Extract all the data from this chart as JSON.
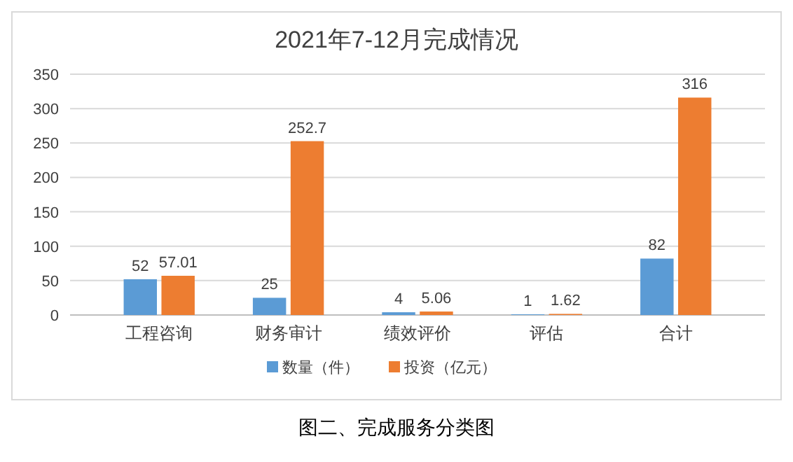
{
  "chart_data": {
    "type": "bar",
    "title": "2021年7-12月完成情况",
    "categories": [
      "工程咨询",
      "财务审计",
      "绩效评价",
      "评估",
      "合计"
    ],
    "series": [
      {
        "name": "数量（件）",
        "color": "#5b9bd5",
        "values": [
          52,
          25,
          4,
          1,
          82
        ]
      },
      {
        "name": "投资（亿元）",
        "color": "#ed7d31",
        "values": [
          57.01,
          252.7,
          5.06,
          1.62,
          316
        ]
      }
    ],
    "ylim": [
      0,
      350
    ],
    "yticks": [
      0,
      50,
      100,
      150,
      200,
      250,
      300,
      350
    ],
    "grid": "y",
    "legend": "bottom",
    "data_labels": true,
    "annotations": [
      "图二、完成服务分类图"
    ]
  }
}
